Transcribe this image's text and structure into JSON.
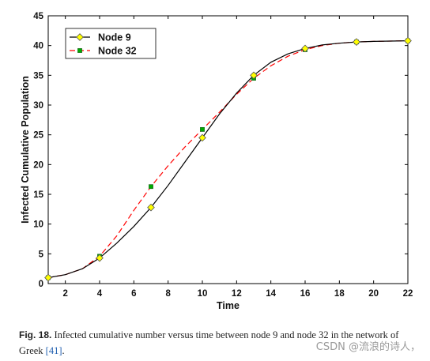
{
  "chart_data": {
    "type": "line",
    "xlabel": "Time",
    "ylabel": "Infected Cumulative Population",
    "xlim": [
      1,
      22
    ],
    "ylim": [
      0,
      45
    ],
    "xticks": [
      2,
      4,
      6,
      8,
      10,
      12,
      14,
      16,
      18,
      20,
      22
    ],
    "yticks": [
      0,
      5,
      10,
      15,
      20,
      25,
      30,
      35,
      40,
      45
    ],
    "legend_position": "top-left",
    "grid": false,
    "series": [
      {
        "name": "Node 9",
        "color": "#000000",
        "line_style": "solid",
        "marker": "diamond",
        "marker_color": "#ffff00",
        "x": [
          1,
          2,
          3,
          4,
          5,
          6,
          7,
          8,
          9,
          10,
          11,
          12,
          13,
          14,
          15,
          16,
          17,
          18,
          19,
          20,
          21,
          22
        ],
        "y": [
          1.0,
          1.5,
          2.5,
          4.3,
          6.8,
          9.6,
          12.8,
          16.5,
          20.5,
          24.5,
          28.5,
          32.0,
          35.0,
          37.2,
          38.6,
          39.5,
          40.1,
          40.4,
          40.6,
          40.7,
          40.75,
          40.8
        ],
        "marker_x": [
          1,
          4,
          7,
          10,
          13,
          16,
          19,
          22
        ],
        "marker_y": [
          1.0,
          4.3,
          12.8,
          24.5,
          35.0,
          39.5,
          40.6,
          40.8
        ]
      },
      {
        "name": "Node 32",
        "color": "#ff0000",
        "line_style": "dashed",
        "marker": "square",
        "marker_color": "#00aa00",
        "x": [
          1,
          2,
          3,
          4,
          5,
          6,
          7,
          8,
          9,
          10,
          11,
          12,
          13,
          14,
          15,
          16,
          17,
          18,
          19,
          20,
          21,
          22
        ],
        "y": [
          1.0,
          1.5,
          2.5,
          4.6,
          8.0,
          12.3,
          16.3,
          19.8,
          23.0,
          25.9,
          28.8,
          31.8,
          34.5,
          36.6,
          38.2,
          39.3,
          40.0,
          40.4,
          40.6,
          40.7,
          40.75,
          40.8
        ],
        "marker_x": [
          1,
          4,
          7,
          10,
          13,
          16,
          19,
          22
        ],
        "marker_y": [
          1.0,
          4.6,
          16.3,
          25.9,
          34.5,
          39.3,
          40.6,
          40.8
        ]
      }
    ]
  },
  "caption": {
    "fig_label": "Fig. 18.",
    "text_before_ref": " Infected cumulative number versus time between node 9 and node 32 in the network of Greek ",
    "ref": "[41]",
    "text_after_ref": "."
  },
  "watermark": "CSDN @流浪的诗人，"
}
